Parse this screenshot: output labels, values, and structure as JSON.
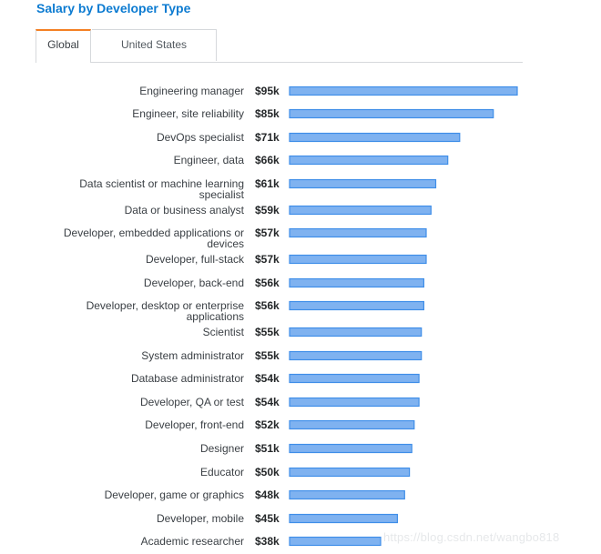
{
  "page": {
    "title": "Salary by Developer Type",
    "tabs": [
      {
        "label": "Global",
        "active": true
      },
      {
        "label": "United States",
        "active": false
      }
    ],
    "watermark": "https://blog.csdn.net/wangbo818"
  },
  "colors": {
    "title": "#0c7bd1",
    "tab_accent": "#f48024",
    "bar_fill": "#7fb2f0",
    "bar_stroke": "#3f8ee8"
  },
  "chart_data": {
    "type": "bar",
    "orientation": "horizontal",
    "title": "Salary by Developer Type",
    "xlabel": "",
    "ylabel": "",
    "unit": "USD thousands",
    "xlim": [
      0,
      95
    ],
    "grid": false,
    "categories": [
      [
        "Engineering manager"
      ],
      [
        "Engineer, site reliability"
      ],
      [
        "DevOps specialist"
      ],
      [
        "Engineer, data"
      ],
      [
        "Data scientist or machine learning",
        "specialist"
      ],
      [
        "Data or business analyst"
      ],
      [
        "Developer, embedded applications or",
        "devices"
      ],
      [
        "Developer, full-stack"
      ],
      [
        "Developer, back-end"
      ],
      [
        "Developer, desktop or enterprise",
        "applications"
      ],
      [
        "Scientist"
      ],
      [
        "System administrator"
      ],
      [
        "Database administrator"
      ],
      [
        "Developer, QA or test"
      ],
      [
        "Developer, front-end"
      ],
      [
        "Designer"
      ],
      [
        "Educator"
      ],
      [
        "Developer, game or graphics"
      ],
      [
        "Developer, mobile"
      ],
      [
        "Academic researcher"
      ]
    ],
    "values": [
      95,
      85,
      71,
      66,
      61,
      59,
      57,
      57,
      56,
      56,
      55,
      55,
      54,
      54,
      52,
      51,
      50,
      48,
      45,
      38
    ],
    "value_labels": [
      "$95k",
      "$85k",
      "$71k",
      "$66k",
      "$61k",
      "$59k",
      "$57k",
      "$57k",
      "$56k",
      "$56k",
      "$55k",
      "$55k",
      "$54k",
      "$54k",
      "$52k",
      "$51k",
      "$50k",
      "$48k",
      "$45k",
      "$38k"
    ]
  }
}
